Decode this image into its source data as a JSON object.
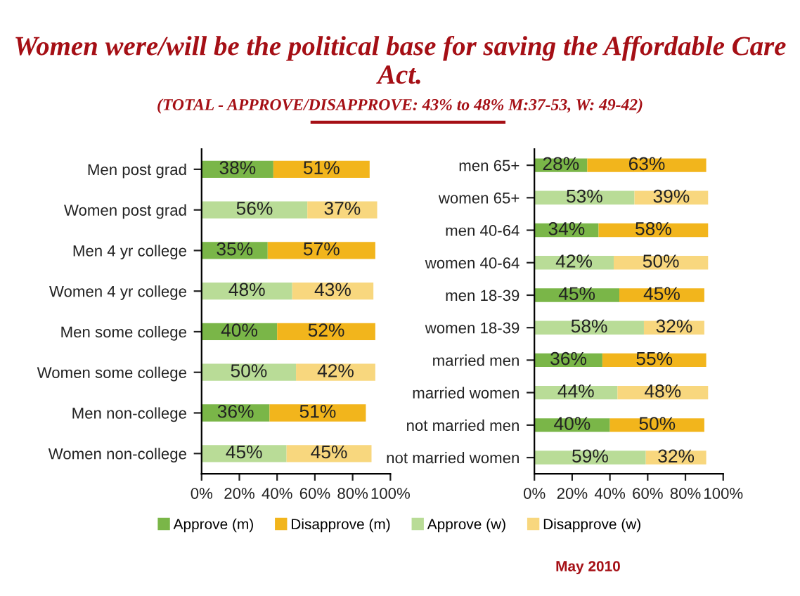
{
  "chart_data": [
    {
      "type": "bar",
      "orientation": "horizontal",
      "stacked": true,
      "title": "Women were/will be the political base for saving the Affordable Care Act.",
      "subtitle": "(TOTAL - APPROVE/DISAPPROVE: 43% to 48% M:37-53, W: 49-42)",
      "categories": [
        "Men post grad",
        "Women post grad",
        "Men 4 yr college",
        "Women 4 yr college",
        "Men some college",
        "Women some college",
        "Men non-college",
        "Women non-college"
      ],
      "xlim": [
        0,
        100
      ],
      "xticks": [
        {
          "value": 0,
          "label": "0%"
        },
        {
          "value": 20,
          "label": "20%"
        },
        {
          "value": 40,
          "label": "40%"
        },
        {
          "value": 60,
          "label": "60%"
        },
        {
          "value": 80,
          "label": "80%"
        },
        {
          "value": 100,
          "label": "100%"
        }
      ],
      "legend": "bottom",
      "grid": false,
      "series": [
        {
          "name": "Approve (m)",
          "color": "#7ab648",
          "values": [
            38,
            null,
            35,
            null,
            40,
            null,
            36,
            null
          ],
          "value_labels": [
            "38%",
            null,
            "35%",
            null,
            "40%",
            null,
            "36%",
            null
          ]
        },
        {
          "name": "Disapprove (m)",
          "color": "#f2b51c",
          "values": [
            51,
            null,
            57,
            null,
            52,
            null,
            51,
            null
          ],
          "value_labels": [
            "51%",
            null,
            "57%",
            null,
            "52%",
            null,
            "51%",
            null
          ]
        },
        {
          "name": "Approve (w)",
          "color": "#b9dc97",
          "values": [
            null,
            56,
            null,
            48,
            null,
            50,
            null,
            45
          ],
          "value_labels": [
            null,
            "56%",
            null,
            "48%",
            null,
            "50%",
            null,
            "45%"
          ]
        },
        {
          "name": "Disapprove (w)",
          "color": "#f8d77e",
          "values": [
            null,
            37,
            null,
            43,
            null,
            42,
            null,
            45
          ],
          "value_labels": [
            null,
            "37%",
            null,
            "43%",
            null,
            "42%",
            null,
            "45%"
          ]
        }
      ]
    },
    {
      "type": "bar",
      "orientation": "horizontal",
      "stacked": true,
      "categories": [
        "men 65+",
        "women 65+",
        "men 40-64",
        "women 40-64",
        "men 18-39",
        "women 18-39",
        "married men",
        "married women",
        "not married men",
        "not married women"
      ],
      "xlim": [
        0,
        100
      ],
      "xticks": [
        {
          "value": 0,
          "label": "0%"
        },
        {
          "value": 20,
          "label": "20%"
        },
        {
          "value": 40,
          "label": "40%"
        },
        {
          "value": 60,
          "label": "60%"
        },
        {
          "value": 80,
          "label": "80%"
        },
        {
          "value": 100,
          "label": "100%"
        }
      ],
      "grid": false,
      "annotations": [
        "May 2010"
      ],
      "series": [
        {
          "color": "#7ab648",
          "values": [
            28,
            null,
            34,
            null,
            45,
            null,
            36,
            null,
            40,
            null
          ],
          "value_labels": [
            "28%",
            null,
            "34%",
            null,
            "45%",
            null,
            "36%",
            null,
            "40%",
            null
          ]
        },
        {
          "color": "#f2b51c",
          "values": [
            63,
            null,
            58,
            null,
            45,
            null,
            55,
            null,
            50,
            null
          ],
          "value_labels": [
            "63%",
            null,
            "58%",
            null,
            "45%",
            null,
            "55%",
            null,
            "50%",
            null
          ]
        },
        {
          "color": "#b9dc97",
          "values": [
            null,
            53,
            null,
            42,
            null,
            58,
            null,
            44,
            null,
            59
          ],
          "value_labels": [
            null,
            "53%",
            null,
            "42%",
            null,
            "58%",
            null,
            "44%",
            null,
            "59%"
          ]
        },
        {
          "color": "#f8d77e",
          "values": [
            null,
            39,
            null,
            50,
            null,
            32,
            null,
            48,
            null,
            32
          ],
          "value_labels": [
            null,
            "39%",
            null,
            "50%",
            null,
            "32%",
            null,
            "48%",
            null,
            "32%"
          ]
        }
      ]
    }
  ]
}
